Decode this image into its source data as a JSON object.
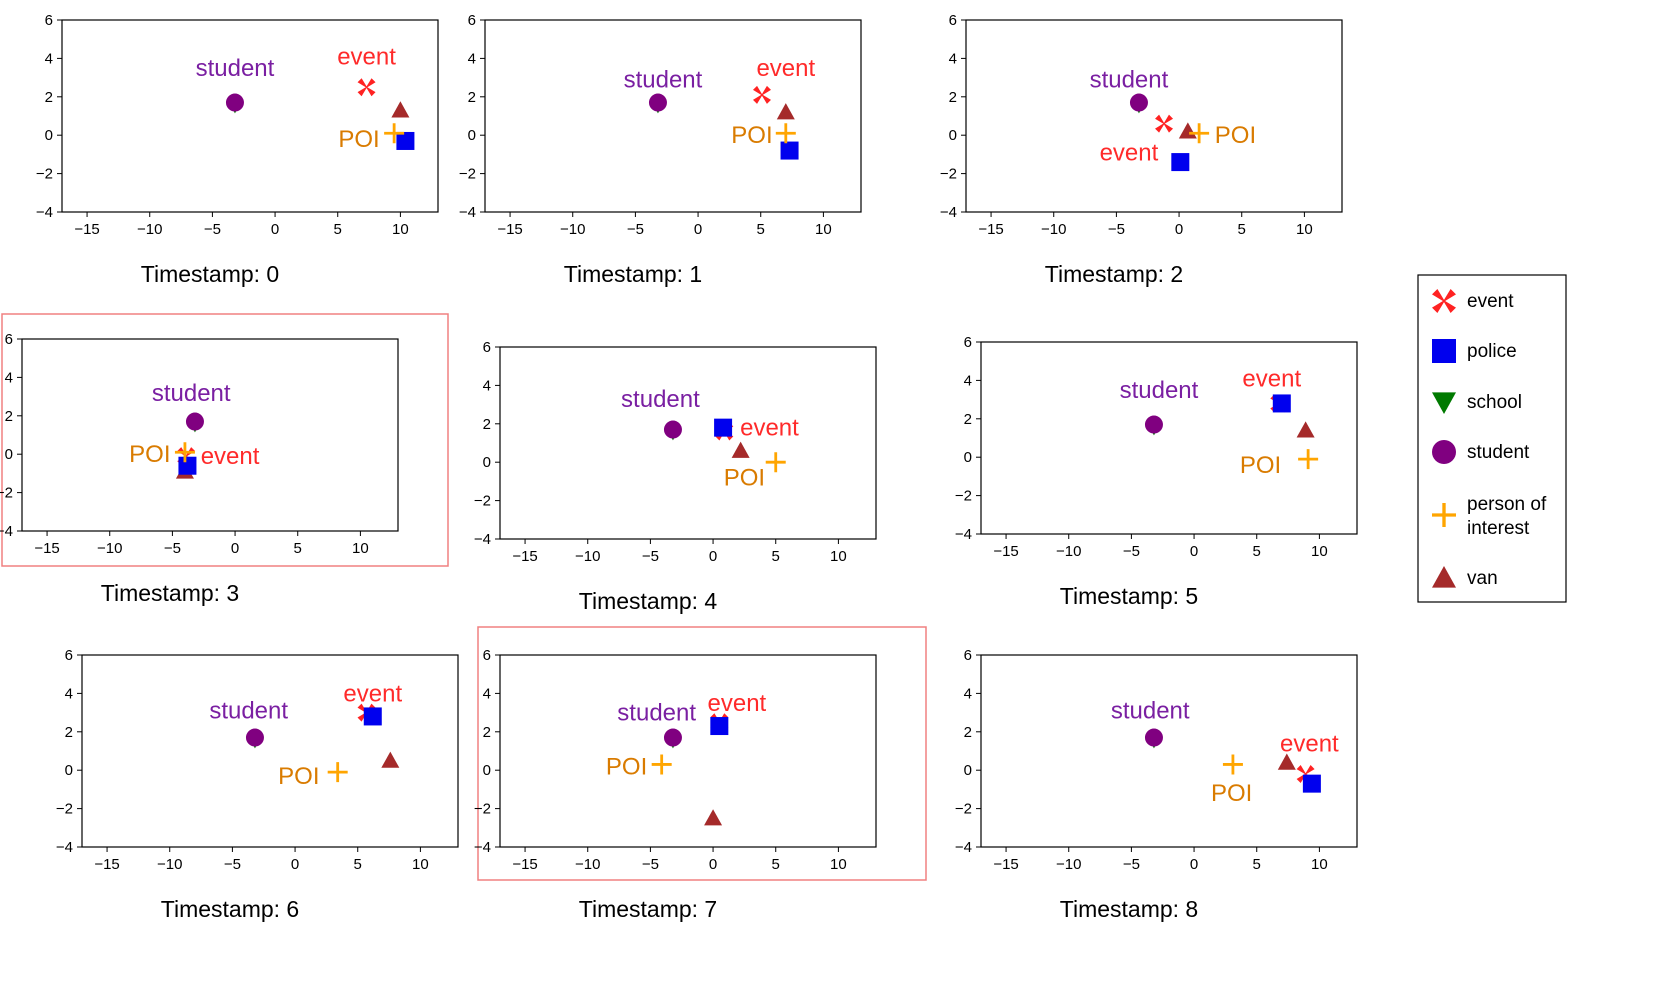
{
  "legend": [
    {
      "key": "event",
      "label": "event",
      "color": "#ff2222",
      "marker": "x-icon"
    },
    {
      "key": "police",
      "label": "police",
      "color": "#0000ee",
      "marker": "square-icon"
    },
    {
      "key": "school",
      "label": "school",
      "color": "#007a00",
      "marker": "triangle-down-icon"
    },
    {
      "key": "student",
      "label": "student",
      "color": "#800080",
      "marker": "circle-icon"
    },
    {
      "key": "poi",
      "label": "person of\ninterest",
      "color": "#ffa500",
      "marker": "plus-icon"
    },
    {
      "key": "van",
      "label": "van",
      "color": "#a52a2a",
      "marker": "triangle-up-icon"
    }
  ],
  "highlight_color": "#f08080",
  "annotation_colors": {
    "student": "#7a1fa2",
    "event": "#ff2a2a",
    "POI": "#d97b00"
  },
  "chart_data": [
    {
      "type": "scatter",
      "caption": "Timestamp: 0",
      "highlighted": false,
      "xlim": [
        -17,
        13
      ],
      "ylim": [
        -4,
        6
      ],
      "xticks": [
        -15,
        -10,
        -5,
        0,
        5,
        10
      ],
      "yticks": [
        -4,
        -2,
        0,
        2,
        4,
        6
      ],
      "points": {
        "event": [
          7.3,
          2.5
        ],
        "police": [
          10.4,
          -0.3
        ],
        "school": [
          -3.2,
          1.5
        ],
        "student": [
          -3.2,
          1.7
        ],
        "poi": [
          9.5,
          0.1
        ],
        "van": [
          10.0,
          1.3
        ]
      },
      "annotations": [
        {
          "text": "student",
          "color": "student",
          "x": -3.2,
          "y": 3.5
        },
        {
          "text": "event",
          "color": "event",
          "x": 7.3,
          "y": 4.1
        },
        {
          "text": "POI",
          "color": "POI",
          "x": 6.7,
          "y": -0.2
        }
      ]
    },
    {
      "type": "scatter",
      "caption": "Timestamp: 1",
      "highlighted": false,
      "xlim": [
        -17,
        13
      ],
      "ylim": [
        -4,
        6
      ],
      "xticks": [
        -15,
        -10,
        -5,
        0,
        5,
        10
      ],
      "yticks": [
        -4,
        -2,
        0,
        2,
        4,
        6
      ],
      "points": {
        "event": [
          5.1,
          2.1
        ],
        "police": [
          7.3,
          -0.8
        ],
        "school": [
          -3.2,
          1.5
        ],
        "student": [
          -3.2,
          1.7
        ],
        "poi": [
          7.0,
          0.1
        ],
        "van": [
          7.0,
          1.2
        ]
      },
      "annotations": [
        {
          "text": "student",
          "color": "student",
          "x": -2.8,
          "y": 2.9
        },
        {
          "text": "event",
          "color": "event",
          "x": 7.0,
          "y": 3.5
        },
        {
          "text": "POI",
          "color": "POI",
          "x": 4.3,
          "y": 0.0
        }
      ]
    },
    {
      "type": "scatter",
      "caption": "Timestamp: 2",
      "highlighted": false,
      "xlim": [
        -17,
        13
      ],
      "ylim": [
        -4,
        6
      ],
      "xticks": [
        -15,
        -10,
        -5,
        0,
        5,
        10
      ],
      "yticks": [
        -4,
        -2,
        0,
        2,
        4,
        6
      ],
      "points": {
        "event": [
          -1.2,
          0.6
        ],
        "police": [
          0.1,
          -1.4
        ],
        "school": [
          -3.2,
          1.5
        ],
        "student": [
          -3.2,
          1.7
        ],
        "poi": [
          1.6,
          0.1
        ],
        "van": [
          0.7,
          0.2
        ]
      },
      "annotations": [
        {
          "text": "student",
          "color": "student",
          "x": -4.0,
          "y": 2.9
        },
        {
          "text": "event",
          "color": "event",
          "x": -4.0,
          "y": -0.9
        },
        {
          "text": "POI",
          "color": "POI",
          "x": 4.5,
          "y": 0.0
        }
      ]
    },
    {
      "type": "scatter",
      "caption": "Timestamp: 3",
      "highlighted": true,
      "xlim": [
        -17,
        13
      ],
      "ylim": [
        -4,
        6
      ],
      "xticks": [
        -15,
        -10,
        -5,
        0,
        5,
        10
      ],
      "yticks": [
        -4,
        -2,
        0,
        2,
        4,
        6
      ],
      "points": {
        "event": [
          -3.9,
          -0.1
        ],
        "police": [
          -3.8,
          -0.6
        ],
        "school": [
          -3.2,
          1.5
        ],
        "student": [
          -3.2,
          1.7
        ],
        "poi": [
          -4.0,
          0.1
        ],
        "van": [
          -4.0,
          -0.9
        ]
      },
      "annotations": [
        {
          "text": "student",
          "color": "student",
          "x": -3.5,
          "y": 3.2
        },
        {
          "text": "POI",
          "color": "POI",
          "x": -6.8,
          "y": 0.0
        },
        {
          "text": "event",
          "color": "event",
          "x": -0.4,
          "y": -0.1
        }
      ]
    },
    {
      "type": "scatter",
      "caption": "Timestamp: 4",
      "highlighted": false,
      "xlim": [
        -17,
        13
      ],
      "ylim": [
        -4,
        6
      ],
      "xticks": [
        -15,
        -10,
        -5,
        0,
        5,
        10
      ],
      "yticks": [
        -4,
        -2,
        0,
        2,
        4,
        6
      ],
      "points": {
        "event": [
          0.9,
          1.6
        ],
        "police": [
          0.8,
          1.8
        ],
        "school": [
          -3.2,
          1.5
        ],
        "student": [
          -3.2,
          1.7
        ],
        "poi": [
          5.0,
          0.0
        ],
        "van": [
          2.2,
          0.6
        ]
      },
      "annotations": [
        {
          "text": "student",
          "color": "student",
          "x": -4.2,
          "y": 3.3
        },
        {
          "text": "event",
          "color": "event",
          "x": 4.5,
          "y": 1.8
        },
        {
          "text": "POI",
          "color": "POI",
          "x": 2.5,
          "y": -0.8
        }
      ]
    },
    {
      "type": "scatter",
      "caption": "Timestamp: 5",
      "highlighted": false,
      "xlim": [
        -17,
        13
      ],
      "ylim": [
        -4,
        6
      ],
      "xticks": [
        -15,
        -10,
        -5,
        0,
        5,
        10
      ],
      "yticks": [
        -4,
        -2,
        0,
        2,
        4,
        6
      ],
      "points": {
        "event": [
          6.8,
          2.8
        ],
        "police": [
          7.0,
          2.8
        ],
        "school": [
          -3.2,
          1.5
        ],
        "student": [
          -3.2,
          1.7
        ],
        "poi": [
          9.1,
          -0.1
        ],
        "van": [
          8.9,
          1.4
        ]
      },
      "annotations": [
        {
          "text": "student",
          "color": "student",
          "x": -2.8,
          "y": 3.5
        },
        {
          "text": "event",
          "color": "event",
          "x": 6.2,
          "y": 4.1
        },
        {
          "text": "POI",
          "color": "POI",
          "x": 5.3,
          "y": -0.4
        }
      ]
    },
    {
      "type": "scatter",
      "caption": "Timestamp: 6",
      "highlighted": false,
      "xlim": [
        -17,
        13
      ],
      "ylim": [
        -4,
        6
      ],
      "xticks": [
        -15,
        -10,
        -5,
        0,
        5,
        10
      ],
      "yticks": [
        -4,
        -2,
        0,
        2,
        4,
        6
      ],
      "points": {
        "event": [
          5.7,
          3.0
        ],
        "police": [
          6.2,
          2.8
        ],
        "school": [
          -3.2,
          1.5
        ],
        "student": [
          -3.2,
          1.7
        ],
        "poi": [
          3.4,
          -0.1
        ],
        "van": [
          7.6,
          0.5
        ]
      },
      "annotations": [
        {
          "text": "student",
          "color": "student",
          "x": -3.7,
          "y": 3.1
        },
        {
          "text": "event",
          "color": "event",
          "x": 6.2,
          "y": 4.0
        },
        {
          "text": "POI",
          "color": "POI",
          "x": 0.3,
          "y": -0.3
        }
      ]
    },
    {
      "type": "scatter",
      "caption": "Timestamp: 7",
      "highlighted": true,
      "xlim": [
        -17,
        13
      ],
      "ylim": [
        -4,
        6
      ],
      "xticks": [
        -15,
        -10,
        -5,
        0,
        5,
        10
      ],
      "yticks": [
        -4,
        -2,
        0,
        2,
        4,
        6
      ],
      "points": {
        "event": [
          0.5,
          2.5
        ],
        "police": [
          0.5,
          2.3
        ],
        "school": [
          -3.2,
          1.5
        ],
        "student": [
          -3.2,
          1.7
        ],
        "poi": [
          -4.1,
          0.3
        ],
        "van": [
          0.0,
          -2.5
        ]
      },
      "annotations": [
        {
          "text": "student",
          "color": "student",
          "x": -4.5,
          "y": 3.0
        },
        {
          "text": "event",
          "color": "event",
          "x": 1.9,
          "y": 3.5
        },
        {
          "text": "POI",
          "color": "POI",
          "x": -6.9,
          "y": 0.2
        }
      ]
    },
    {
      "type": "scatter",
      "caption": "Timestamp: 8",
      "highlighted": false,
      "xlim": [
        -17,
        13
      ],
      "ylim": [
        -4,
        6
      ],
      "xticks": [
        -15,
        -10,
        -5,
        0,
        5,
        10
      ],
      "yticks": [
        -4,
        -2,
        0,
        2,
        4,
        6
      ],
      "points": {
        "event": [
          8.9,
          -0.2
        ],
        "police": [
          9.4,
          -0.7
        ],
        "school": [
          -3.2,
          1.5
        ],
        "student": [
          -3.2,
          1.7
        ],
        "poi": [
          3.1,
          0.3
        ],
        "van": [
          7.4,
          0.4
        ]
      },
      "annotations": [
        {
          "text": "student",
          "color": "student",
          "x": -3.5,
          "y": 3.1
        },
        {
          "text": "event",
          "color": "event",
          "x": 9.2,
          "y": 1.4
        },
        {
          "text": "POI",
          "color": "POI",
          "x": 3.0,
          "y": -1.2
        }
      ]
    }
  ]
}
